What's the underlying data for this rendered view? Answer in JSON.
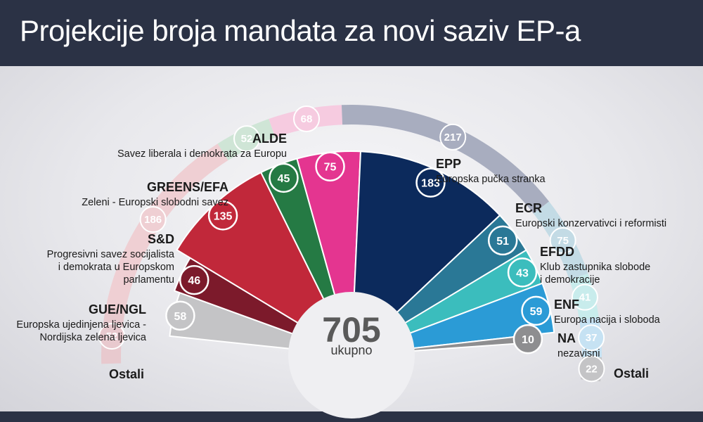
{
  "header": {
    "title": "Projekcije broja mandata za novi saziv EP-a"
  },
  "chart_data": {
    "type": "pie",
    "total": {
      "value": "705",
      "label": "ukupno"
    },
    "series": [
      {
        "name": "Ostali",
        "values": [
          58
        ]
      },
      {
        "name": "GUE/NGL",
        "values": [
          46
        ]
      },
      {
        "name": "S&D",
        "values": [
          135
        ]
      },
      {
        "name": "GREENS/EFA",
        "values": [
          45
        ]
      },
      {
        "name": "ALDE",
        "values": [
          75
        ]
      },
      {
        "name": "EPP",
        "values": [
          183
        ]
      },
      {
        "name": "ECR",
        "values": [
          51
        ]
      },
      {
        "name": "EFDD",
        "values": [
          43
        ]
      },
      {
        "name": "ENF",
        "values": [
          59
        ]
      },
      {
        "name": "NA",
        "values": [
          10
        ]
      }
    ],
    "parties": [
      {
        "key": "ostali-left",
        "name": "Ostali",
        "desc": [],
        "seats": 58,
        "color": "#c4c4c6",
        "outer_seats": 52,
        "outer_color": "#e8c9ce",
        "outer_weight": 52
      },
      {
        "key": "gue-ngl",
        "name": "GUE/NGL",
        "desc": [
          "Europska ujedinjena ljevica -",
          "Nordijska zelena ljevica"
        ],
        "seats": 46,
        "color": "#7c1a2b",
        "outer_seats": null,
        "outer_color": "#e8c9ce",
        "outer_weight": 0
      },
      {
        "key": "s-and-d",
        "name": "S&D",
        "desc": [
          "Progresivni savez socijalista",
          "i demokrata u Europskom",
          "parlamentu"
        ],
        "seats": 135,
        "color": "#c1283a",
        "outer_seats": 186,
        "outer_color": "#efcfd3",
        "outer_weight": 186
      },
      {
        "key": "greens-efa",
        "name": "GREENS/EFA",
        "desc": [
          "Zeleni - Europski slobodni savez"
        ],
        "seats": 45,
        "color": "#257a44",
        "outer_seats": 52,
        "outer_color": "#cfe5d6",
        "outer_weight": 52
      },
      {
        "key": "alde",
        "name": "ALDE",
        "desc": [
          "Savez liberala i demokrata za Europu"
        ],
        "seats": 75,
        "color": "#e43590",
        "outer_seats": 68,
        "outer_color": "#f6cbe0",
        "outer_weight": 68
      },
      {
        "key": "epp",
        "name": "EPP",
        "desc": [
          "Europska pučka stranka"
        ],
        "seats": 183,
        "color": "#0c2a5c",
        "outer_seats": 217,
        "outer_color": "#a8adbf",
        "outer_weight": 217
      },
      {
        "key": "ecr",
        "name": "ECR",
        "desc": [
          "Europski konzervativci i reformisti"
        ],
        "seats": 51,
        "color": "#2a7896",
        "outer_seats": 75,
        "outer_color": "#c3dbe5",
        "outer_weight": 75
      },
      {
        "key": "efdd",
        "name": "EFDD",
        "desc": [
          "Klub zastupnika slobode",
          "i demokracije"
        ],
        "seats": 43,
        "color": "#3bbdbd",
        "outer_seats": 41,
        "outer_color": "#c8ecec",
        "outer_weight": 41
      },
      {
        "key": "enf",
        "name": "ENF",
        "desc": [
          "Europa nacija i sloboda"
        ],
        "seats": 59,
        "color": "#2b9bd6",
        "outer_seats": 37,
        "outer_color": "#c6e2f3",
        "outer_weight": 37
      },
      {
        "key": "na",
        "name": "NA",
        "desc": [
          "nezavisni"
        ],
        "seats": 10,
        "color": "#8e8e90",
        "outer_seats": null,
        "outer_color": "#c6e2f3",
        "outer_weight": 0
      },
      {
        "key": "ostali-right",
        "name": "Ostali",
        "desc": [],
        "seats": 0,
        "color": "#c4c4c6",
        "outer_seats": 22,
        "outer_color": "#c4c4c6",
        "outer_weight": 22
      }
    ]
  }
}
